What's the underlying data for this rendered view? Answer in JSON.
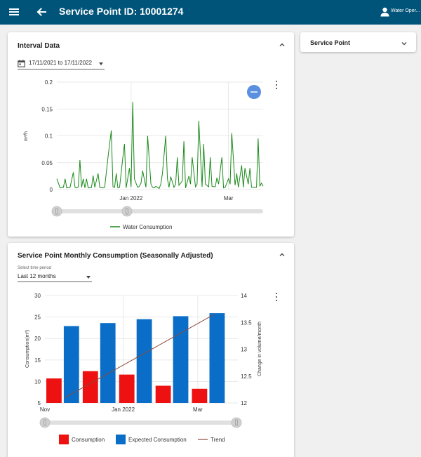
{
  "header": {
    "title": "Service Point ID: 10001274",
    "user": "Water Oper..."
  },
  "interval": {
    "title": "Interval Data",
    "date_range": "17/11/2021 to 17/11/2022",
    "ylabel": "m³/h",
    "legend": "Water Consumption",
    "line_color": "#1a8a1a",
    "fab_color": "#5b8fe0"
  },
  "service_point": {
    "title": "Service Point"
  },
  "monthly": {
    "title": "Service Point Monthly Consumption (Seasonally Adjusted)",
    "period_label": "Select time period",
    "period_value": "Last 12 months",
    "legend": {
      "consumption": "Consumption",
      "expected": "Expected Consumption",
      "trend": "Trend"
    },
    "colors": {
      "consumption": "#ee1111",
      "expected": "#0a6ec8",
      "trend": "#8b4a3a"
    }
  },
  "chart_data": [
    {
      "type": "line",
      "title": "Interval Data",
      "ylabel": "m³/h",
      "ylim": [
        0,
        0.2
      ],
      "yticks": [
        "0",
        "0.05",
        "0.1",
        "0.15",
        "0.2"
      ],
      "xticks": [
        {
          "label": "Jan 2022",
          "x": "2022-01-01"
        },
        {
          "label": "Mar",
          "x": "2022-03-01"
        }
      ],
      "xlim": [
        "2021-11-17",
        "2022-03-22"
      ],
      "series": [
        {
          "name": "Water Consumption",
          "x": [
            "2021-11-17",
            "2021-11-19",
            "2021-11-21",
            "2021-11-22",
            "2021-11-23",
            "2021-11-25",
            "2021-11-27",
            "2021-11-28",
            "2021-11-29",
            "2021-11-30",
            "2021-12-01",
            "2021-12-02",
            "2021-12-03",
            "2021-12-04",
            "2021-12-05",
            "2021-12-06",
            "2021-12-08",
            "2021-12-09",
            "2021-12-10",
            "2021-12-12",
            "2021-12-13",
            "2021-12-15",
            "2021-12-16",
            "2021-12-18",
            "2021-12-20",
            "2021-12-21",
            "2021-12-22",
            "2021-12-23",
            "2021-12-24",
            "2021-12-25",
            "2021-12-27",
            "2021-12-28",
            "2021-12-29",
            "2021-12-31",
            "2022-01-01",
            "2022-01-02",
            "2022-01-03",
            "2022-01-05",
            "2022-01-06",
            "2022-01-07",
            "2022-01-08",
            "2022-01-10",
            "2022-01-11",
            "2022-01-13",
            "2022-01-14",
            "2022-01-15",
            "2022-01-16",
            "2022-01-18",
            "2022-01-19",
            "2022-01-20",
            "2022-01-22",
            "2022-01-23",
            "2022-01-24",
            "2022-01-25",
            "2022-01-27",
            "2022-01-28",
            "2022-01-29",
            "2022-01-30",
            "2022-02-01",
            "2022-02-02",
            "2022-02-03",
            "2022-02-05",
            "2022-02-06",
            "2022-02-07",
            "2022-02-09",
            "2022-02-10",
            "2022-02-11",
            "2022-02-13",
            "2022-02-14",
            "2022-02-15",
            "2022-02-17",
            "2022-02-18",
            "2022-02-19",
            "2022-02-21",
            "2022-02-22",
            "2022-02-23",
            "2022-02-25",
            "2022-02-26",
            "2022-02-27",
            "2022-03-01",
            "2022-03-02",
            "2022-03-03",
            "2022-03-05",
            "2022-03-06",
            "2022-03-07",
            "2022-03-09",
            "2022-03-10",
            "2022-03-11",
            "2022-03-13",
            "2022-03-14",
            "2022-03-15",
            "2022-03-17",
            "2022-03-18",
            "2022-03-19",
            "2022-03-20",
            "2022-03-21",
            "2022-03-22"
          ],
          "y": [
            0.02,
            0.003,
            0.004,
            0.02,
            0.003,
            0.004,
            0.032,
            0.004,
            0.003,
            0.005,
            0.055,
            0.004,
            0.02,
            0.003,
            0.02,
            0.003,
            0.004,
            0.026,
            0.004,
            0.03,
            0.004,
            0.003,
            0.004,
            0.06,
            0.11,
            0.005,
            0.004,
            0.03,
            0.003,
            0.004,
            0.06,
            0.085,
            0.003,
            0.04,
            0.005,
            0.163,
            0.02,
            0.004,
            0.006,
            0.012,
            0.035,
            0.004,
            0.1,
            0.01,
            0.004,
            0.003,
            0.006,
            0.002,
            0.01,
            0.03,
            0.1,
            0.02,
            0.004,
            0.024,
            0.004,
            0.01,
            0.06,
            0.008,
            0.016,
            0.09,
            0.003,
            0.025,
            0.01,
            0.06,
            0.005,
            0.01,
            0.128,
            0.005,
            0.085,
            0.01,
            0.005,
            0.06,
            0.006,
            0.005,
            0.022,
            0.01,
            0.06,
            0.003,
            0.004,
            0.02,
            0.01,
            0.105,
            0.008,
            0.03,
            0.004,
            0.045,
            0.004,
            0.04,
            0.01,
            0.04,
            0.004,
            0.004,
            0.004,
            0.095,
            0.006,
            0.012,
            0.006
          ]
        }
      ]
    },
    {
      "type": "bar",
      "title": "Service Point Monthly Consumption (Seasonally Adjusted)",
      "ylabel": "Consumption(m³)",
      "y2label": "Change in volume/month",
      "ylim": [
        5,
        30
      ],
      "yticks": [
        5,
        10,
        15,
        20,
        25,
        30
      ],
      "y2lim": [
        12,
        14
      ],
      "y2ticks": [
        12,
        12.5,
        13,
        13.5,
        14
      ],
      "xticks": [
        "Nov",
        "Jan 2022",
        "Mar"
      ],
      "categories": [
        "2021-11",
        "2021-12",
        "2022-01",
        "2022-02",
        "2022-03",
        "2022-04"
      ],
      "series": [
        {
          "name": "Consumption",
          "values": [
            10.7,
            12.4,
            11.6,
            9.0,
            8.3,
            null
          ]
        },
        {
          "name": "Expected Consumption",
          "values": [
            22.9,
            23.6,
            24.5,
            25.2,
            25.9,
            null
          ]
        },
        {
          "name": "Trend",
          "start": 12.1,
          "end": 13.65
        }
      ]
    }
  ]
}
